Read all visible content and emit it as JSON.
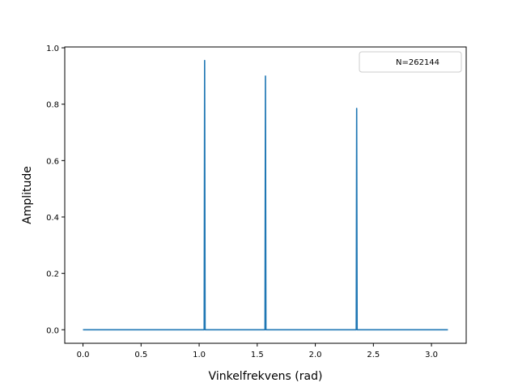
{
  "chart_data": {
    "type": "line",
    "title": "",
    "xlabel": "Vinkelfrekvens (rad)",
    "ylabel": "Amplitude",
    "xlim": [
      -0.157,
      3.299
    ],
    "ylim": [
      -0.048,
      1.003
    ],
    "xticks": [
      0.0,
      0.5,
      1.0,
      1.5,
      2.0,
      2.5,
      3.0
    ],
    "xtick_labels": [
      "0.0",
      "0.5",
      "1.0",
      "1.5",
      "2.0",
      "2.5",
      "3.0"
    ],
    "yticks": [
      0.0,
      0.2,
      0.4,
      0.6,
      0.8,
      1.0
    ],
    "ytick_labels": [
      "0.0",
      "0.2",
      "0.4",
      "0.6",
      "0.8",
      "1.0"
    ],
    "grid": false,
    "legend_position": "upper right",
    "series": [
      {
        "name": "N=262144",
        "color": "#1f77b4",
        "baseline": 0.0,
        "x_range": [
          0.0,
          3.1416
        ],
        "peaks": [
          {
            "x": 1.0472,
            "y": 0.955
          },
          {
            "x": 1.5708,
            "y": 0.9
          },
          {
            "x": 2.3562,
            "y": 0.785
          }
        ]
      }
    ]
  }
}
